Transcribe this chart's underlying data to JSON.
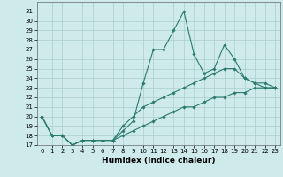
{
  "xlabel": "Humidex (Indice chaleur)",
  "x_values": [
    0,
    1,
    2,
    3,
    4,
    5,
    6,
    7,
    8,
    9,
    10,
    11,
    12,
    13,
    14,
    15,
    16,
    17,
    18,
    19,
    20,
    21,
    22,
    23
  ],
  "line1": [
    20,
    18,
    18,
    17,
    17.5,
    17.5,
    17.5,
    17.5,
    18.5,
    19.5,
    23.5,
    27,
    27,
    29,
    31,
    26.5,
    24.5,
    25,
    27.5,
    26,
    24,
    23.5,
    23.5,
    23
  ],
  "line2": [
    20,
    18,
    18,
    17,
    17.5,
    17.5,
    17.5,
    17.5,
    19,
    20,
    21,
    21.5,
    22,
    22.5,
    23,
    23.5,
    24,
    24.5,
    25,
    25,
    24,
    23.5,
    23,
    23
  ],
  "line3": [
    20,
    18,
    18,
    17,
    17.5,
    17.5,
    17.5,
    17.5,
    18,
    18.5,
    19,
    19.5,
    20,
    20.5,
    21,
    21,
    21.5,
    22,
    22,
    22.5,
    22.5,
    23,
    23,
    23
  ],
  "line_color": "#2a7a6e",
  "bg_color": "#ceeaea",
  "grid_color": "#aacece",
  "ylim": [
    17,
    32
  ],
  "yticks": [
    17,
    18,
    19,
    20,
    21,
    22,
    23,
    24,
    25,
    26,
    27,
    28,
    29,
    30,
    31
  ],
  "xticks": [
    0,
    1,
    2,
    3,
    4,
    5,
    6,
    7,
    8,
    9,
    10,
    11,
    12,
    13,
    14,
    15,
    16,
    17,
    18,
    19,
    20,
    21,
    22,
    23
  ],
  "tick_fontsize": 5.0,
  "xlabel_fontsize": 6.5,
  "marker": "D",
  "marker_size": 1.8,
  "line_width": 0.8
}
